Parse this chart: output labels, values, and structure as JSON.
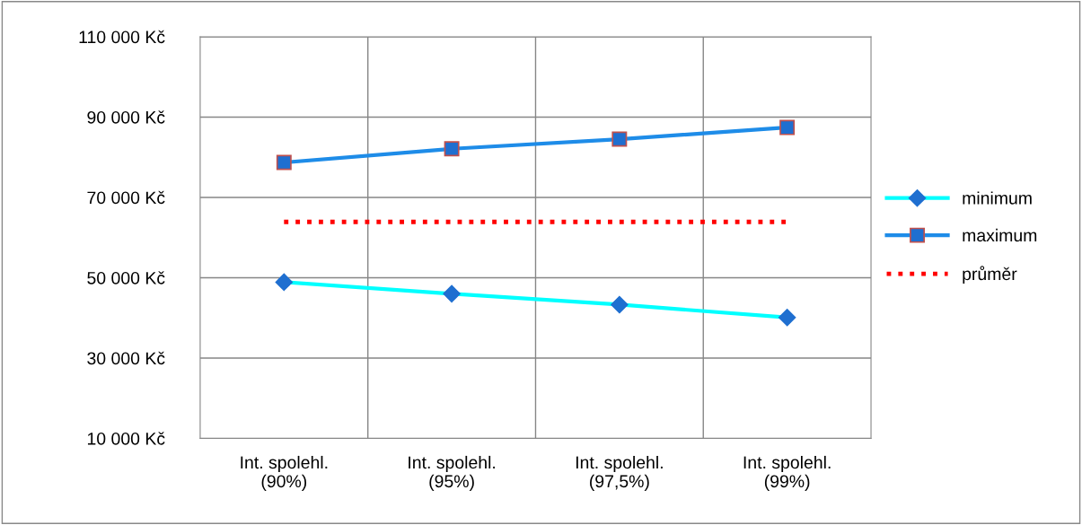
{
  "chart_data": {
    "type": "line",
    "categories": [
      "Int. spolehl.\n(90%)",
      "Int. spolehl.\n(95%)",
      "Int. spolehl.\n(97,5%)",
      "Int. spolehl.\n(99%)"
    ],
    "series": [
      {
        "name": "minimum",
        "color": "#00ffff",
        "values": [
          48900,
          46000,
          43300,
          40100
        ],
        "marker": "diamond",
        "line_style": "solid"
      },
      {
        "name": "maximum",
        "color": "#1e8ce8",
        "values": [
          78700,
          82100,
          84500,
          87400
        ],
        "marker": "square",
        "line_style": "solid"
      },
      {
        "name": "průměr",
        "color": "#ff0000",
        "values": [
          63900,
          63900,
          63900,
          63900
        ],
        "marker": "none",
        "line_style": "dotted"
      }
    ],
    "ylim": [
      10000,
      110000
    ],
    "yticks": [
      {
        "value": 10000,
        "label": "10 000 Kč"
      },
      {
        "value": 30000,
        "label": "30 000 Kč"
      },
      {
        "value": 50000,
        "label": "50 000 Kč"
      },
      {
        "value": 70000,
        "label": "70 000 Kč"
      },
      {
        "value": 90000,
        "label": "90 000 Kč"
      },
      {
        "value": 110000,
        "label": "110 000 Kč"
      }
    ],
    "grid": true,
    "legend": "right"
  }
}
